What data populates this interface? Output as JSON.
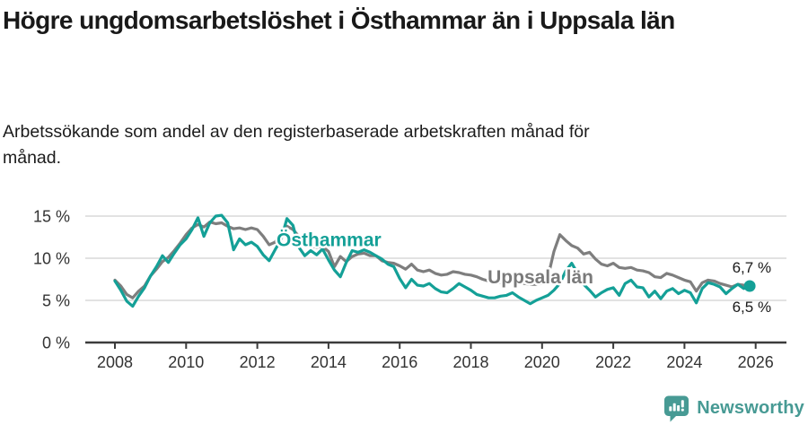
{
  "page": {
    "title": "Högre ungdomsarbetslöshet i Östhammar än i Uppsala län",
    "subtitle": "Arbetssökande som andel av den registerbaserade arbetskraften månad för månad."
  },
  "footer": {
    "brand": "Newsworthy",
    "brand_color": "#479a94"
  },
  "chart_data": {
    "type": "line",
    "title": "Högre ungdomsarbetslöshet i Östhammar än i Uppsala län",
    "unit": "%",
    "x_start_year": 2008,
    "x_step_months": 2,
    "x_tick_labels": [
      "2008",
      "2010",
      "2012",
      "2014",
      "2016",
      "2018",
      "2020",
      "2022",
      "2024",
      "2026"
    ],
    "y_ticks": [
      0,
      5,
      10,
      15
    ],
    "y_tick_labels": [
      "0 %",
      "5 %",
      "10 %",
      "15 %"
    ],
    "ylim": [
      0,
      16.5
    ],
    "grid": true,
    "legend_position": "inline-labels",
    "colors": {
      "osthammar": "#14a097",
      "uppsala_lan": "#7e7e7e",
      "gridline": "#d9d9d9",
      "axis": "#3b3b3b",
      "tick_text": "#333333",
      "end_label_text": "#1a1a1a"
    },
    "series": [
      {
        "name": "Östhammar",
        "color": "#14a097",
        "end_dot": true,
        "end_label": "6,7 %",
        "values": [
          7.3,
          6.2,
          4.9,
          4.3,
          5.5,
          6.5,
          7.9,
          9.0,
          10.3,
          9.5,
          10.6,
          11.6,
          12.3,
          13.4,
          14.8,
          12.6,
          14.2,
          15.0,
          15.1,
          14.2,
          11.0,
          12.3,
          11.6,
          11.9,
          11.4,
          10.4,
          9.7,
          11.0,
          12.2,
          14.7,
          13.9,
          11.3,
          10.3,
          10.9,
          10.4,
          11.1,
          9.8,
          8.6,
          7.8,
          9.5,
          10.9,
          10.7,
          11.0,
          10.7,
          10.3,
          9.9,
          9.3,
          9.0,
          7.6,
          6.5,
          7.5,
          6.8,
          6.7,
          7.0,
          6.4,
          6.0,
          5.9,
          6.4,
          7.0,
          6.6,
          6.2,
          5.7,
          5.5,
          5.3,
          5.3,
          5.5,
          5.6,
          5.9,
          5.4,
          5.0,
          4.6,
          5.0,
          5.3,
          5.6,
          6.2,
          7.0,
          8.5,
          9.4,
          8.2,
          6.9,
          6.2,
          5.4,
          5.9,
          6.3,
          6.5,
          5.6,
          7.0,
          7.4,
          6.6,
          6.5,
          5.4,
          6.1,
          5.2,
          6.1,
          6.4,
          5.8,
          6.2,
          5.9,
          4.7,
          6.4,
          7.1,
          6.9,
          6.6,
          5.8,
          6.4,
          6.9,
          6.4,
          6.7
        ]
      },
      {
        "name": "Uppsala län",
        "color": "#7e7e7e",
        "end_dot": false,
        "end_label": "6,5 %",
        "values": [
          7.4,
          6.7,
          5.7,
          5.3,
          6.1,
          6.7,
          7.9,
          8.7,
          9.6,
          10.1,
          10.9,
          11.8,
          12.8,
          13.6,
          14.0,
          13.7,
          14.3,
          14.1,
          14.2,
          13.8,
          13.5,
          13.6,
          13.4,
          13.6,
          13.4,
          12.6,
          11.6,
          11.9,
          12.9,
          13.8,
          13.4,
          12.6,
          11.9,
          11.5,
          11.3,
          11.4,
          10.8,
          9.0,
          10.2,
          9.6,
          10.2,
          10.5,
          10.6,
          10.3,
          10.3,
          9.7,
          9.5,
          9.4,
          9.1,
          8.7,
          9.3,
          8.6,
          8.4,
          8.6,
          8.2,
          8.0,
          8.1,
          8.4,
          8.3,
          8.1,
          8.0,
          7.8,
          7.5,
          7.3,
          7.2,
          7.1,
          7.2,
          7.3,
          7.1,
          7.0,
          6.9,
          6.9,
          7.0,
          7.8,
          10.8,
          12.8,
          12.1,
          11.5,
          11.2,
          10.5,
          10.7,
          9.9,
          9.3,
          9.1,
          9.4,
          8.9,
          8.8,
          8.9,
          8.6,
          8.5,
          8.3,
          7.8,
          7.7,
          8.2,
          8.0,
          7.7,
          7.4,
          7.2,
          6.1,
          7.1,
          7.4,
          7.3,
          7.0,
          6.8,
          6.6,
          6.9,
          6.8,
          6.5
        ]
      }
    ],
    "annotations": [
      {
        "text": "Östhammar",
        "year": 2012.54,
        "value": 11.45,
        "color": "#14a097"
      },
      {
        "text": "Uppsala län",
        "year": 2018.47,
        "value": 7.0,
        "color": "#7a7a7a"
      }
    ]
  }
}
